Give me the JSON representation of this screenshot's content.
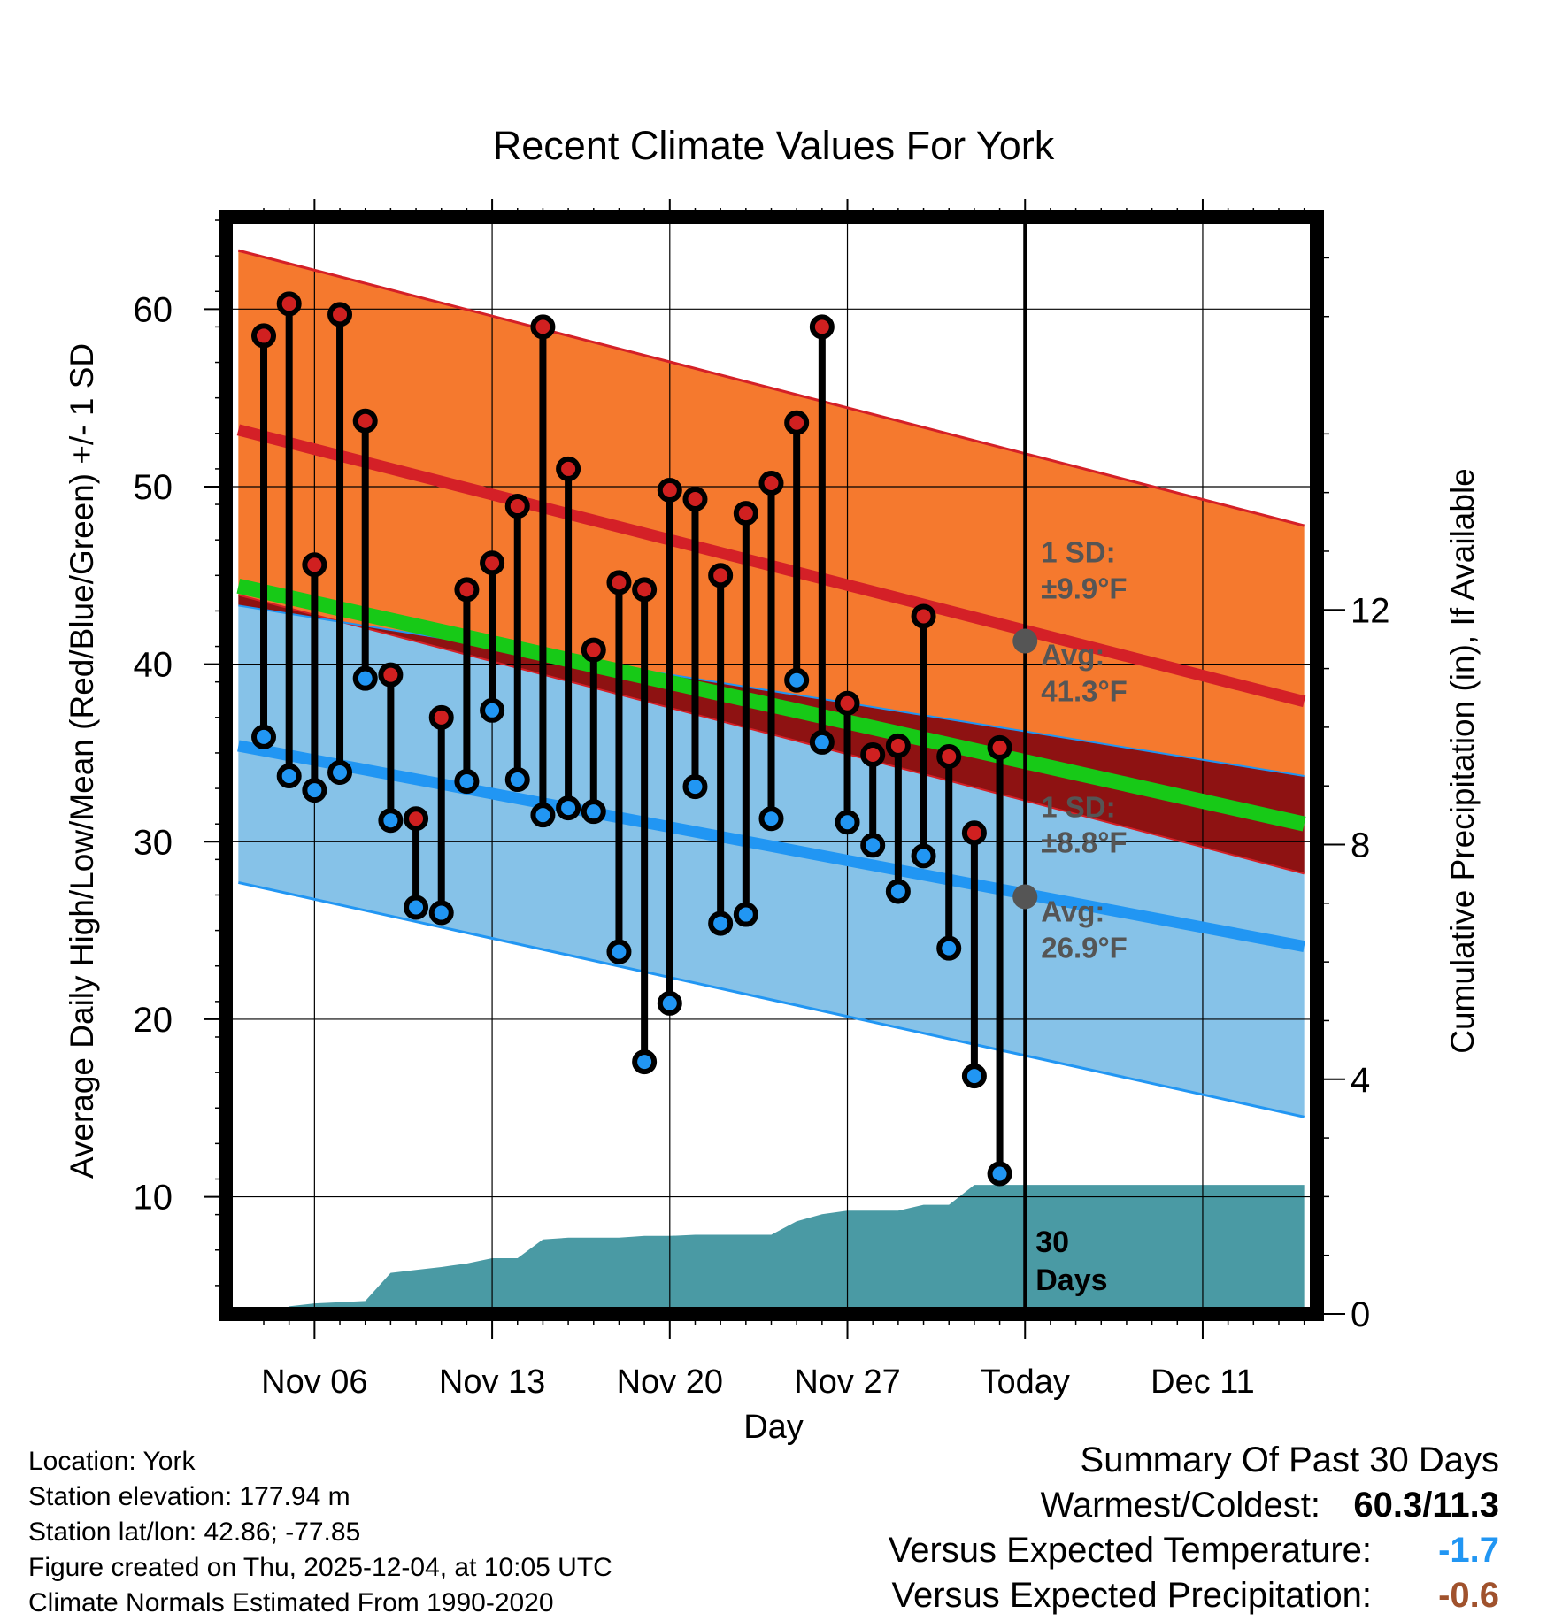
{
  "chart_data": {
    "type": "line",
    "title": "Recent Climate Values For York",
    "xlabel": "Day",
    "ylabel": "Average Daily High/Low/Mean (Red/Blue/Green) +/- 1 SD",
    "y2label": "Cumulative Precipitation (in), If Available",
    "xlim": [
      -1.5,
      41.5
    ],
    "ylim": [
      3.4,
      65.2
    ],
    "y2lim": [
      0,
      18.7
    ],
    "x_ticks": [
      {
        "x": 2,
        "label": "Nov 06"
      },
      {
        "x": 9,
        "label": "Nov 13"
      },
      {
        "x": 16,
        "label": "Nov 20"
      },
      {
        "x": 23,
        "label": "Nov 27"
      },
      {
        "x": 30,
        "label": "Today"
      },
      {
        "x": 37,
        "label": "Dec 11"
      }
    ],
    "y_ticks": [
      10,
      20,
      30,
      40,
      50,
      60
    ],
    "y2_ticks": [
      0,
      4,
      8,
      12
    ],
    "normals": {
      "x_range": [
        -1,
        41
      ],
      "high_avg": [
        53.2,
        37.9
      ],
      "high_upper": [
        63.3,
        47.8
      ],
      "high_lower": [
        43.9,
        28.2
      ],
      "low_avg": [
        35.4,
        24.1
      ],
      "low_upper": [
        43.3,
        33.7
      ],
      "low_lower": [
        27.7,
        14.5
      ],
      "mean_avg": [
        44.4,
        31.0
      ]
    },
    "annotations": {
      "today_x": 30,
      "high_sd_label": "1 SD:",
      "high_sd_value": "±9.9°F",
      "high_avg_label": "Avg:",
      "high_avg_value": "41.3°F",
      "low_sd_label": "1 SD:",
      "low_sd_value": "±8.8°F",
      "low_avg_label": "Avg:",
      "low_avg_value": "26.9°F",
      "today_high_avg": 41.3,
      "today_low_avg": 26.9,
      "precip_label_1": "30",
      "precip_label_2": "Days"
    },
    "series": [
      {
        "name": "Daily High",
        "color": "#d02020",
        "x": [
          0,
          1,
          2,
          3,
          4,
          5,
          6,
          7,
          8,
          9,
          10,
          11,
          12,
          13,
          14,
          15,
          16,
          17,
          18,
          19,
          20,
          21,
          22,
          23,
          24,
          25,
          26,
          27,
          28,
          29
        ],
        "values": [
          58.5,
          60.3,
          45.6,
          59.7,
          53.7,
          39.4,
          31.3,
          37.0,
          44.2,
          45.7,
          48.9,
          59.0,
          51.0,
          40.8,
          44.6,
          44.2,
          49.8,
          49.3,
          45.0,
          48.5,
          50.2,
          53.6,
          59.0,
          37.8,
          34.9,
          35.4,
          42.7,
          34.8,
          30.5,
          35.3
        ]
      },
      {
        "name": "Daily Low",
        "color": "#2196f3",
        "x": [
          0,
          1,
          2,
          3,
          4,
          5,
          6,
          7,
          8,
          9,
          10,
          11,
          12,
          13,
          14,
          15,
          16,
          17,
          18,
          19,
          20,
          21,
          22,
          23,
          24,
          25,
          26,
          27,
          28,
          29
        ],
        "values": [
          35.9,
          33.7,
          32.9,
          33.9,
          39.2,
          31.2,
          26.3,
          26.0,
          33.4,
          37.4,
          33.5,
          31.5,
          31.9,
          31.7,
          23.8,
          17.6,
          20.9,
          33.1,
          25.4,
          25.9,
          31.3,
          39.1,
          35.6,
          31.1,
          29.8,
          27.2,
          29.2,
          24.0,
          16.8,
          11.3
        ]
      },
      {
        "name": "Cumulative Precipitation",
        "color": "#4a9aa4",
        "points": [
          [
            -1,
            0
          ],
          [
            0,
            0
          ],
          [
            0.7,
            0.05
          ],
          [
            1,
            0.13
          ],
          [
            2,
            0.18
          ],
          [
            3,
            0.2
          ],
          [
            4,
            0.22
          ],
          [
            5,
            0.7
          ],
          [
            6,
            0.75
          ],
          [
            7,
            0.8
          ],
          [
            8,
            0.86
          ],
          [
            9,
            0.95
          ],
          [
            10,
            0.95
          ],
          [
            11,
            1.27
          ],
          [
            12,
            1.3
          ],
          [
            13,
            1.3
          ],
          [
            14,
            1.3
          ],
          [
            15,
            1.33
          ],
          [
            16,
            1.33
          ],
          [
            17,
            1.35
          ],
          [
            18,
            1.35
          ],
          [
            19,
            1.35
          ],
          [
            20,
            1.35
          ],
          [
            21,
            1.58
          ],
          [
            22,
            1.7
          ],
          [
            23,
            1.76
          ],
          [
            24,
            1.76
          ],
          [
            25,
            1.76
          ],
          [
            26,
            1.86
          ],
          [
            27,
            1.86
          ],
          [
            28,
            2.2
          ],
          [
            29,
            2.2
          ],
          [
            30,
            2.2
          ],
          [
            41,
            2.2
          ]
        ]
      }
    ]
  },
  "info": {
    "location": "Location: York",
    "elevation": "Station elevation: 177.94 m",
    "latlon": "Station lat/lon: 42.86; -77.85",
    "created": "Figure created on Thu, 2025-12-04, at 10:05 UTC",
    "normals": "Climate Normals Estimated From 1990-2020"
  },
  "summary": {
    "title": "Summary Of Past 30 Days",
    "warmest_label": "Warmest/Coldest:",
    "warmest_value": "60.3/11.3",
    "temp_label": "Versus Expected Temperature:",
    "temp_value": "-1.7",
    "temp_color": "#2196f3",
    "precip_label": "Versus Expected Precipitation:",
    "precip_value": "-0.6",
    "precip_color": "#a0522d"
  },
  "colors": {
    "high_band": "#f5792e",
    "high_line": "#d42027",
    "low_band": "#86c2e8",
    "low_line": "#2196f3",
    "overlap": "#8e1212",
    "mean_line": "#17c917",
    "precip_fill": "#4a9aa4",
    "annotation": "#555555"
  }
}
